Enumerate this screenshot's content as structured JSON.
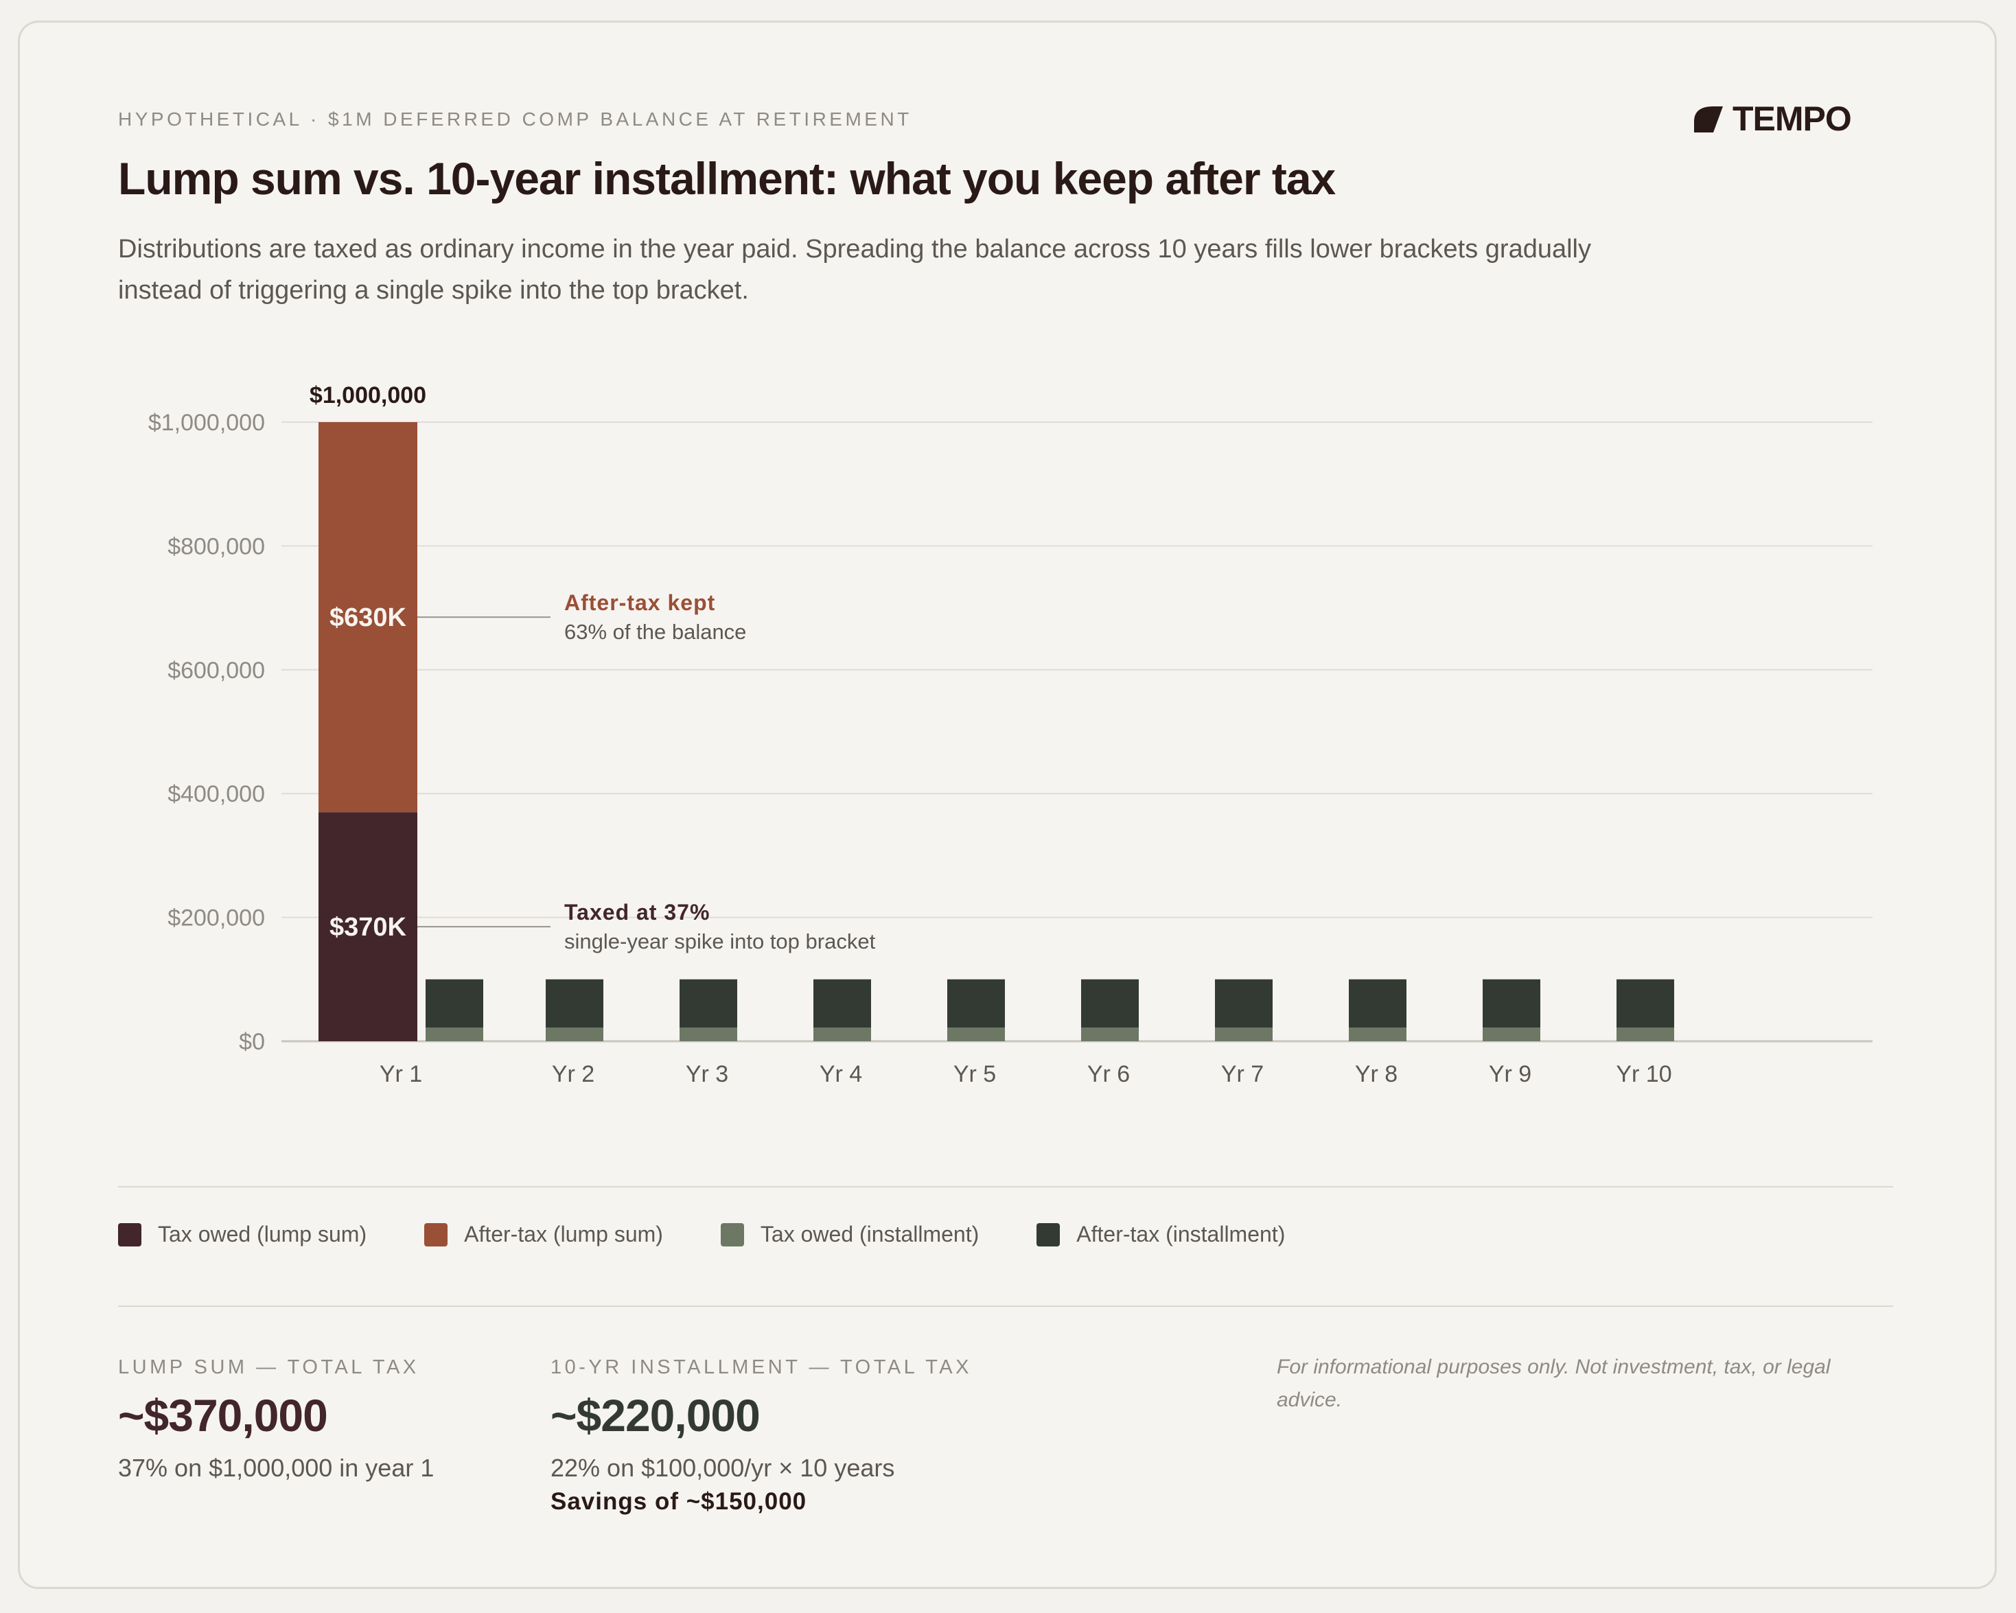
{
  "header": {
    "eyebrow": "HYPOTHETICAL · $1M DEFERRED COMP BALANCE AT RETIREMENT",
    "title": "Lump sum vs. 10-year installment: what you keep after tax",
    "subtitle": "Distributions are taxed as ordinary income in the year paid. Spreading the balance across 10 years fills lower brackets gradually instead of triggering a single spike into the top bracket.",
    "logo_text": "TEMPO"
  },
  "colors": {
    "tax_lump": "#42262b",
    "aftertax_lump": "#9a4f37",
    "tax_installment": "#6c7864",
    "aftertax_installment": "#333a33"
  },
  "chart_data": {
    "type": "bar",
    "stacked": true,
    "categories": [
      "Yr 1",
      "Yr 2",
      "Yr 3",
      "Yr 4",
      "Yr 5",
      "Yr 6",
      "Yr 7",
      "Yr 8",
      "Yr 9",
      "Yr 10"
    ],
    "ylim": [
      0,
      1000000
    ],
    "yticks": [
      0,
      200000,
      400000,
      600000,
      800000,
      1000000
    ],
    "ytick_labels": [
      "$0",
      "$200,000",
      "$400,000",
      "$600,000",
      "$800,000",
      "$1,000,000"
    ],
    "grid": true,
    "series": [
      {
        "name": "Tax owed (lump sum)",
        "group": "lump",
        "values": [
          370000,
          0,
          0,
          0,
          0,
          0,
          0,
          0,
          0,
          0
        ]
      },
      {
        "name": "After-tax (lump sum)",
        "group": "lump",
        "values": [
          630000,
          0,
          0,
          0,
          0,
          0,
          0,
          0,
          0,
          0
        ]
      },
      {
        "name": "Tax owed (installment)",
        "group": "installment",
        "values": [
          22000,
          22000,
          22000,
          22000,
          22000,
          22000,
          22000,
          22000,
          22000,
          22000
        ]
      },
      {
        "name": "After-tax (installment)",
        "group": "installment",
        "values": [
          78000,
          78000,
          78000,
          78000,
          78000,
          78000,
          78000,
          78000,
          78000,
          78000
        ]
      }
    ],
    "data_labels": {
      "total": "$1,000,000",
      "aftertax": "$630K",
      "tax": "$370K"
    },
    "annotations": [
      {
        "title": "After-tax kept",
        "text": "63% of the balance",
        "value": 685000
      },
      {
        "title": "Taxed at 37%",
        "text": "single-year spike into top bracket",
        "value": 185000
      }
    ]
  },
  "legend": [
    {
      "label": "Tax owed (lump sum)",
      "color": "#42262b"
    },
    {
      "label": "After-tax (lump sum)",
      "color": "#9a4f37"
    },
    {
      "label": "Tax owed (installment)",
      "color": "#6c7864"
    },
    {
      "label": "After-tax (installment)",
      "color": "#333a33"
    }
  ],
  "stats": {
    "lump": {
      "label": "LUMP SUM — TOTAL TAX",
      "value": "~$370,000",
      "note": "37% on $1,000,000 in year 1"
    },
    "installment": {
      "label": "10-YR INSTALLMENT — TOTAL TAX",
      "value": "~$220,000",
      "note": "22% on $100,000/yr × 10 years",
      "savings": "Savings of ~$150,000"
    }
  },
  "disclaimer": "For informational purposes only. Not investment, tax, or legal advice."
}
